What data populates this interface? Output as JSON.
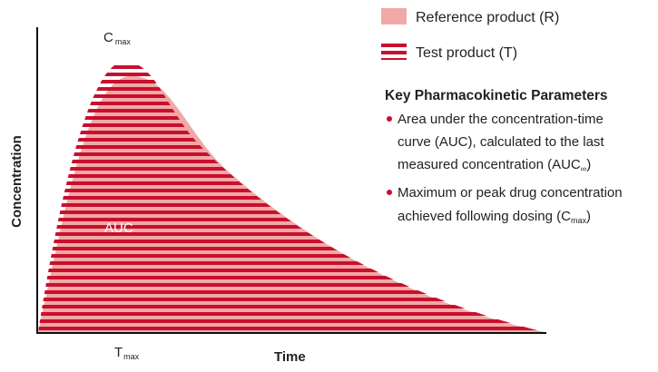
{
  "diagram": {
    "cmax": {
      "main": "C",
      "sub": "max"
    },
    "auc": "AUC",
    "tmax": {
      "main": "T",
      "sub": "max"
    },
    "x_axis_label": "Time",
    "y_axis_label": "Concentration"
  },
  "legend": {
    "reference": "Reference product (R)",
    "test": "Test product (T)"
  },
  "parameters": {
    "title": "Key Pharmacokinetic Parameters",
    "bullets": [
      {
        "lines": [
          "Area under the concentration-time",
          "curve (AUC), calculated to the last"
        ],
        "last": {
          "text": "measured concentration (AUC",
          "sub": "∞",
          "after": ")"
        }
      },
      {
        "lines": [
          "Maximum or peak drug concentration"
        ],
        "last": {
          "text": "achieved following dosing (C",
          "sub": "max",
          "after": ")"
        }
      }
    ]
  }
}
